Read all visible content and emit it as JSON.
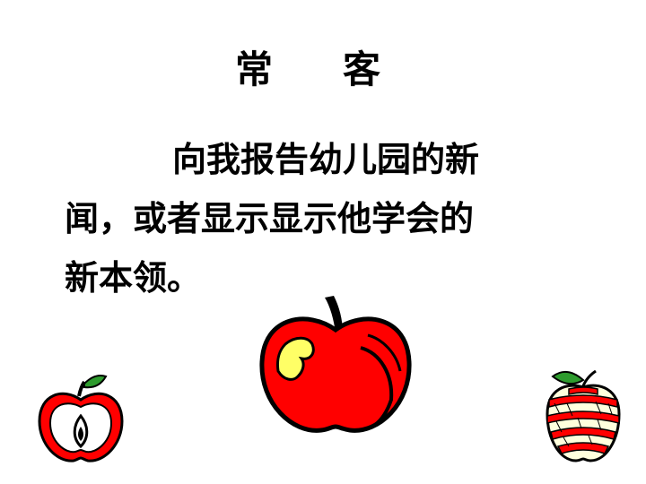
{
  "slide": {
    "title_left": "常",
    "title_right": "客",
    "body_lines": [
      "向我报告幼儿园的新",
      "闻，或者显示显示他学会的",
      "新本领。"
    ],
    "colors": {
      "apple_red": "#ff0000",
      "apple_highlight": "#ffff66",
      "leaf_green": "#2e9b2e",
      "outline": "#000000"
    },
    "icons": [
      "apple-core-icon",
      "big-apple-icon",
      "peeled-apple-icon"
    ]
  }
}
